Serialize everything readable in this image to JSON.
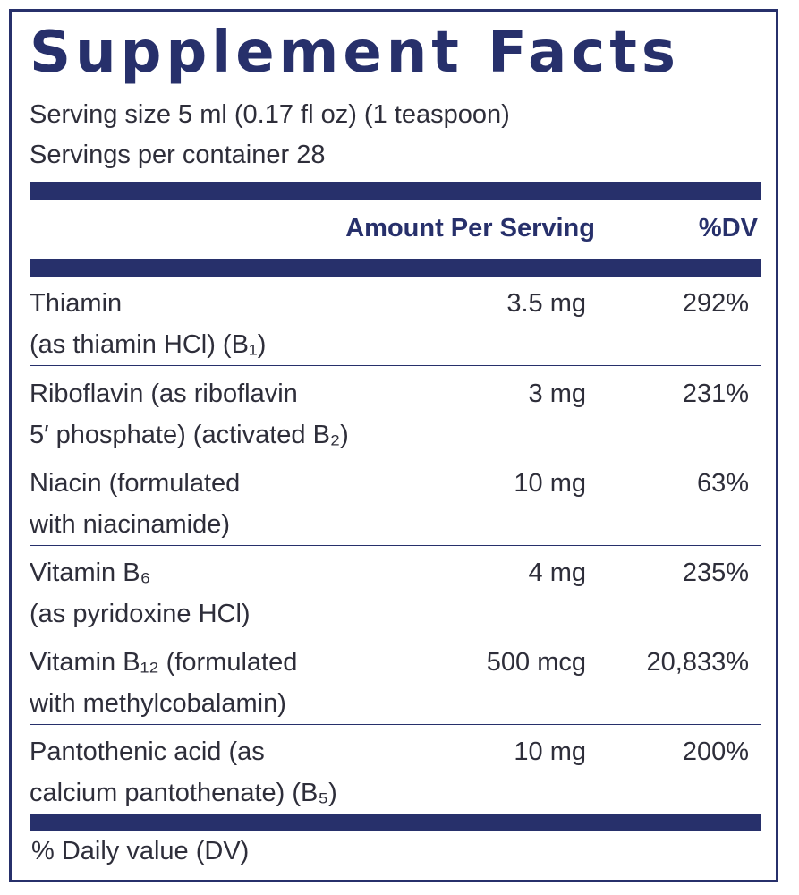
{
  "panel": {
    "title": "Supplement Facts",
    "serving_size": "Serving size 5 ml (0.17 fl oz) (1 teaspoon)",
    "servings_per_container": "Servings per container 28"
  },
  "header": {
    "amount": "Amount Per Serving",
    "dv": "%DV"
  },
  "nutrients": [
    {
      "line1": "Thiamin",
      "line2": "(as thiamin HCl) (B₁)",
      "amount": "3.5 mg",
      "dv": "292%"
    },
    {
      "line1": "Riboflavin (as riboflavin",
      "line2": "5′ phosphate) (activated B₂)",
      "amount": "3 mg",
      "dv": "231%"
    },
    {
      "line1": "Niacin (formulated",
      "line2": "with niacinamide)",
      "amount": "10 mg",
      "dv": "63%"
    },
    {
      "line1": "Vitamin B₆",
      "line2": "(as pyridoxine HCl)",
      "amount": "4 mg",
      "dv": "235%"
    },
    {
      "line1": "Vitamin B₁₂ (formulated",
      "line2": "with methylcobalamin)",
      "amount": "500 mcg",
      "dv": "20,833%"
    },
    {
      "line1": "Pantothenic acid (as",
      "line2": "calcium pantothenate) (B₅)",
      "amount": "10 mg",
      "dv": "200%"
    }
  ],
  "footnote": "% Daily value (DV)",
  "colors": {
    "accent": "#27306b",
    "text": "#2e2e3a",
    "background": "#ffffff"
  }
}
